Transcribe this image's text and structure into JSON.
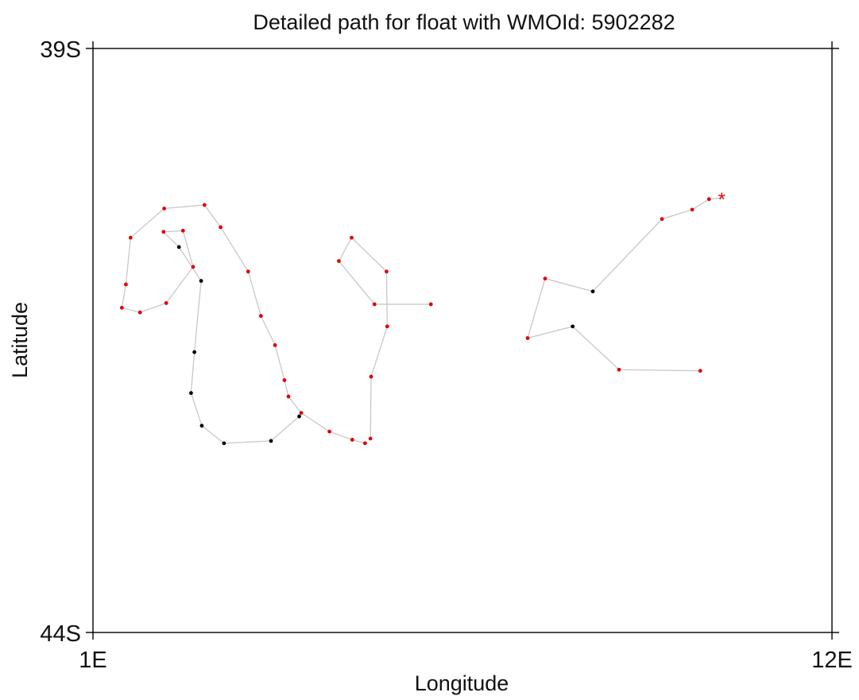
{
  "chart_data": {
    "type": "scatter",
    "title": "Detailed path for float with WMOId: 5902282",
    "xlabel": "Longitude",
    "ylabel": "Latitude",
    "xlim": [
      1,
      12
    ],
    "ylim": [
      -44,
      -39
    ],
    "x_tick_labels": [
      "1E",
      "12E"
    ],
    "y_tick_labels": [
      "39S",
      "44S"
    ],
    "grid": false,
    "colors": {
      "path": "#c8c8c8",
      "good_profile": "#e00000",
      "other_profile": "#000000",
      "latest_position": "#e00000",
      "axis": "#000000"
    },
    "points": [
      {
        "lon": 10.04,
        "lat": -41.76,
        "flag": "red"
      },
      {
        "lon": 8.83,
        "lat": -41.75,
        "flag": "red"
      },
      {
        "lon": 8.14,
        "lat": -41.38,
        "flag": "black"
      },
      {
        "lon": 7.47,
        "lat": -41.48,
        "flag": "red"
      },
      {
        "lon": 7.73,
        "lat": -40.97,
        "flag": "red"
      },
      {
        "lon": 8.44,
        "lat": -41.08,
        "flag": "black"
      },
      {
        "lon": 9.47,
        "lat": -40.46,
        "flag": "red"
      },
      {
        "lon": 9.92,
        "lat": -40.38,
        "flag": "red"
      },
      {
        "lon": 10.17,
        "lat": -40.29,
        "flag": "red"
      }
    ],
    "path": [
      {
        "lon": 5.05,
        "lat": -42.38,
        "flag": "red"
      },
      {
        "lon": 4.86,
        "lat": -42.35,
        "flag": "red"
      },
      {
        "lon": 4.52,
        "lat": -42.28,
        "flag": "red"
      },
      {
        "lon": 4.1,
        "lat": -42.12,
        "flag": "red"
      },
      {
        "lon": 3.91,
        "lat": -41.98,
        "flag": "red"
      },
      {
        "lon": 3.85,
        "lat": -41.84,
        "flag": "red"
      },
      {
        "lon": 3.71,
        "lat": -41.54,
        "flag": "red"
      },
      {
        "lon": 3.5,
        "lat": -41.29,
        "flag": "red"
      },
      {
        "lon": 3.31,
        "lat": -40.91,
        "flag": "red"
      },
      {
        "lon": 2.9,
        "lat": -40.53,
        "flag": "red"
      },
      {
        "lon": 2.66,
        "lat": -40.34,
        "flag": "red"
      },
      {
        "lon": 2.06,
        "lat": -40.37,
        "flag": "red"
      },
      {
        "lon": 1.56,
        "lat": -40.62,
        "flag": "red"
      },
      {
        "lon": 1.49,
        "lat": -41.02,
        "flag": "red"
      },
      {
        "lon": 1.43,
        "lat": -41.22,
        "flag": "red"
      },
      {
        "lon": 1.7,
        "lat": -41.26,
        "flag": "red"
      },
      {
        "lon": 2.09,
        "lat": -41.18,
        "flag": "red"
      },
      {
        "lon": 2.49,
        "lat": -40.87,
        "flag": "red"
      },
      {
        "lon": 2.34,
        "lat": -40.56,
        "flag": "red"
      },
      {
        "lon": 2.05,
        "lat": -40.57,
        "flag": "red"
      },
      {
        "lon": 2.28,
        "lat": -40.7,
        "flag": "black"
      },
      {
        "lon": 2.61,
        "lat": -40.99,
        "flag": "black"
      },
      {
        "lon": 2.51,
        "lat": -41.6,
        "flag": "black"
      },
      {
        "lon": 2.46,
        "lat": -41.95,
        "flag": "black"
      },
      {
        "lon": 2.62,
        "lat": -42.23,
        "flag": "black"
      },
      {
        "lon": 2.95,
        "lat": -42.38,
        "flag": "black"
      },
      {
        "lon": 3.65,
        "lat": -42.36,
        "flag": "black"
      },
      {
        "lon": 4.07,
        "lat": -42.15,
        "flag": "black"
      }
    ],
    "branch": [
      {
        "lon": 5.13,
        "lat": -42.34,
        "flag": "red"
      },
      {
        "lon": 5.14,
        "lat": -41.81,
        "flag": "red"
      },
      {
        "lon": 5.38,
        "lat": -41.38,
        "flag": "red"
      },
      {
        "lon": 5.37,
        "lat": -40.91,
        "flag": "red"
      },
      {
        "lon": 4.85,
        "lat": -40.62,
        "flag": "red"
      },
      {
        "lon": 4.66,
        "lat": -40.82,
        "flag": "red"
      },
      {
        "lon": 5.19,
        "lat": -41.19,
        "flag": "red"
      },
      {
        "lon": 6.03,
        "lat": -41.19,
        "flag": "red"
      }
    ],
    "latest": {
      "lon": 10.36,
      "lat": -40.28,
      "marker": "*"
    }
  }
}
